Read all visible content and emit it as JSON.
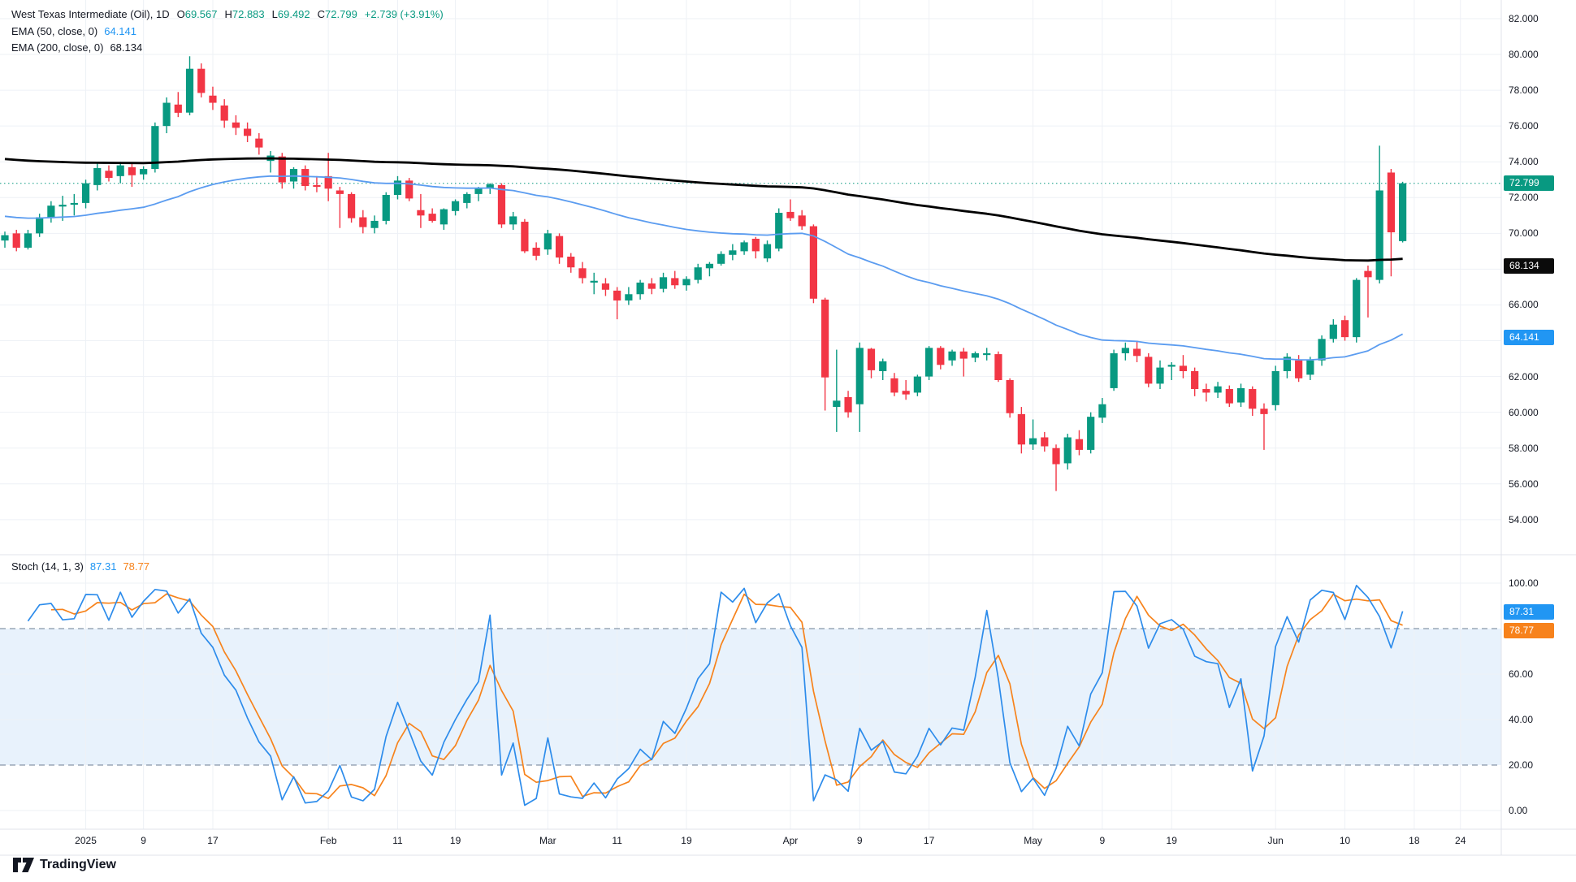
{
  "header": {
    "title": "West Texas Intermediate (Oil), 1D",
    "open_label": "O",
    "open": "69.567",
    "high_label": "H",
    "high": "72.883",
    "low_label": "L",
    "low": "69.492",
    "close_label": "C",
    "close": "72.799",
    "change": "+2.739 (+3.91%)",
    "ema50_label": "EMA (50, close, 0)",
    "ema50_value": "64.141",
    "ema200_label": "EMA (200, close, 0)",
    "ema200_value": "68.134"
  },
  "stoch_header": {
    "label": "Stoch (14, 1, 3)",
    "k_value": "87.31",
    "d_value": "78.77"
  },
  "price_axis": {
    "visible_labels": [
      82,
      80,
      78,
      76,
      74,
      72,
      70,
      66,
      62,
      60,
      58,
      56,
      54
    ],
    "last_price_badge": "72.799",
    "ema200_badge": "68.134",
    "ema50_badge": "64.141"
  },
  "stoch_axis": {
    "visible_labels": [
      100,
      60,
      40,
      20,
      0
    ],
    "k_badge": "87.31",
    "d_badge": "78.77"
  },
  "time_axis": {
    "labels": [
      {
        "label": "2025",
        "i": 7
      },
      {
        "label": "9",
        "i": 12
      },
      {
        "label": "17",
        "i": 18
      },
      {
        "label": "Feb",
        "i": 28
      },
      {
        "label": "11",
        "i": 34
      },
      {
        "label": "19",
        "i": 39
      },
      {
        "label": "Mar",
        "i": 47
      },
      {
        "label": "11",
        "i": 53
      },
      {
        "label": "19",
        "i": 59
      },
      {
        "label": "Apr",
        "i": 68
      },
      {
        "label": "9",
        "i": 74
      },
      {
        "label": "17",
        "i": 80
      },
      {
        "label": "May",
        "i": 89
      },
      {
        "label": "9",
        "i": 95
      },
      {
        "label": "19",
        "i": 101
      },
      {
        "label": "Jun",
        "i": 110
      },
      {
        "label": "10",
        "i": 116
      },
      {
        "label": "18",
        "i": 122
      },
      {
        "label": "24",
        "i": 126
      }
    ]
  },
  "branding": {
    "name": "TradingView"
  },
  "colors": {
    "up": "#089981",
    "down": "#F23645",
    "ema50": "#5B9CF0",
    "ema200": "#000000",
    "stoch_k": "#2D8CEB",
    "stoch_d": "#F7831C",
    "badge_blue": "#2196F3",
    "badge_orange": "#F7821C",
    "grid": "#EEF1F6",
    "band_fill": "#E8F2FC",
    "band_line": "#8796A9",
    "separator": "#E0E3EB",
    "text": "#131722"
  },
  "chart_data": {
    "type": "candlestick",
    "title": "West Texas Intermediate (Oil)",
    "interval": "1D",
    "price_ylim": [
      52.9,
      83.0
    ],
    "stoch_ylim": [
      0,
      100
    ],
    "stoch_overbought": 80,
    "stoch_oversold": 20,
    "last_close": 72.799,
    "indicators": {
      "ema50": {
        "period": 50,
        "seed": 71.0,
        "last": 64.141
      },
      "ema200": {
        "period": 200,
        "seed": 74.2,
        "last": 68.134
      },
      "stoch": {
        "params": [
          14,
          1,
          3
        ],
        "k_last": 87.31,
        "d_last": 78.77
      }
    },
    "candles": [
      [
        "2024-12-20",
        69.6,
        70.1,
        69.2,
        69.9
      ],
      [
        "2024-12-23",
        70.0,
        70.2,
        69.0,
        69.2
      ],
      [
        "2024-12-24",
        69.2,
        70.2,
        69.1,
        70.0
      ],
      [
        "2024-12-26",
        70.0,
        71.1,
        69.8,
        70.9
      ],
      [
        "2024-12-27",
        70.85,
        71.8,
        70.6,
        71.55
      ],
      [
        "2024-12-30",
        71.5,
        72.1,
        70.7,
        71.6
      ],
      [
        "2024-12-31",
        71.6,
        72.2,
        71.0,
        71.7
      ],
      [
        "2025-01-02",
        71.7,
        73.0,
        71.4,
        72.8
      ],
      [
        "2025-01-03",
        72.7,
        73.9,
        72.4,
        73.65
      ],
      [
        "2025-01-06",
        73.5,
        73.8,
        72.9,
        73.1
      ],
      [
        "2025-01-07",
        73.2,
        74.0,
        72.8,
        73.8
      ],
      [
        "2025-01-08",
        73.7,
        73.9,
        72.6,
        73.25
      ],
      [
        "2025-01-09",
        73.3,
        73.75,
        73.0,
        73.6
      ],
      [
        "2025-01-10",
        73.6,
        76.2,
        73.4,
        76.0
      ],
      [
        "2025-01-13",
        76.0,
        77.6,
        75.6,
        77.3
      ],
      [
        "2025-01-14",
        77.2,
        77.9,
        76.5,
        76.74
      ],
      [
        "2025-01-15",
        76.75,
        79.9,
        76.6,
        79.2
      ],
      [
        "2025-01-16",
        79.2,
        79.5,
        77.6,
        77.85
      ],
      [
        "2025-01-17",
        77.7,
        78.2,
        76.9,
        77.3
      ],
      [
        "2025-01-21",
        77.15,
        77.5,
        75.9,
        76.3
      ],
      [
        "2025-01-22",
        76.2,
        76.6,
        75.5,
        75.9
      ],
      [
        "2025-01-23",
        75.85,
        76.2,
        75.1,
        75.45
      ],
      [
        "2025-01-24",
        75.3,
        75.6,
        74.4,
        74.8
      ],
      [
        "2025-01-27",
        74.05,
        74.6,
        73.4,
        74.35
      ],
      [
        "2025-01-28",
        74.3,
        74.5,
        72.5,
        72.85
      ],
      [
        "2025-01-29",
        72.9,
        73.7,
        72.5,
        73.6
      ],
      [
        "2025-01-30",
        73.6,
        73.8,
        72.4,
        72.65
      ],
      [
        "2025-01-31",
        72.7,
        73.2,
        72.3,
        72.6
      ],
      [
        "2025-02-03",
        73.2,
        74.5,
        71.8,
        72.5
      ],
      [
        "2025-02-04",
        72.4,
        72.6,
        70.3,
        72.2
      ],
      [
        "2025-02-05",
        72.2,
        72.3,
        70.6,
        70.85
      ],
      [
        "2025-02-06",
        70.9,
        71.3,
        70.0,
        70.35
      ],
      [
        "2025-02-07",
        70.3,
        71.0,
        70.0,
        70.7
      ],
      [
        "2025-02-10",
        70.7,
        72.3,
        70.5,
        72.15
      ],
      [
        "2025-02-11",
        72.15,
        73.2,
        71.9,
        72.95
      ],
      [
        "2025-02-12",
        72.95,
        73.1,
        71.8,
        71.95
      ],
      [
        "2025-02-13",
        71.3,
        72.2,
        70.3,
        71.0
      ],
      [
        "2025-02-14",
        71.1,
        71.4,
        70.6,
        70.7
      ],
      [
        "2025-02-18",
        70.5,
        71.4,
        70.2,
        71.35
      ],
      [
        "2025-02-19",
        71.25,
        71.9,
        71.0,
        71.8
      ],
      [
        "2025-02-20",
        71.7,
        72.3,
        71.4,
        72.2
      ],
      [
        "2025-02-21",
        72.2,
        72.6,
        71.8,
        72.55
      ],
      [
        "2025-02-24",
        72.5,
        72.8,
        72.2,
        72.75
      ],
      [
        "2025-02-25",
        72.7,
        72.8,
        70.3,
        70.5
      ],
      [
        "2025-02-26",
        70.5,
        71.2,
        70.2,
        70.95
      ],
      [
        "2025-02-27",
        70.65,
        70.8,
        68.9,
        69.0
      ],
      [
        "2025-02-28",
        69.2,
        69.5,
        68.5,
        68.75
      ],
      [
        "2025-03-03",
        69.1,
        70.2,
        68.8,
        70.0
      ],
      [
        "2025-03-04",
        69.85,
        70.0,
        68.3,
        68.65
      ],
      [
        "2025-03-05",
        68.7,
        68.9,
        67.8,
        68.1
      ],
      [
        "2025-03-06",
        68.05,
        68.4,
        67.2,
        67.5
      ],
      [
        "2025-03-07",
        67.25,
        67.8,
        66.6,
        67.35
      ],
      [
        "2025-03-10",
        67.2,
        67.5,
        66.5,
        66.85
      ],
      [
        "2025-03-11",
        66.8,
        67.0,
        65.2,
        66.25
      ],
      [
        "2025-03-12",
        66.25,
        67.0,
        66.0,
        66.6
      ],
      [
        "2025-03-13",
        66.6,
        67.4,
        66.3,
        67.25
      ],
      [
        "2025-03-14",
        67.2,
        67.5,
        66.6,
        66.9
      ],
      [
        "2025-03-17",
        66.9,
        67.8,
        66.7,
        67.55
      ],
      [
        "2025-03-18",
        67.5,
        67.9,
        66.9,
        67.1
      ],
      [
        "2025-03-19",
        67.1,
        67.6,
        66.8,
        67.45
      ],
      [
        "2025-03-20",
        67.4,
        68.3,
        67.2,
        68.1
      ],
      [
        "2025-03-21",
        68.05,
        68.4,
        67.6,
        68.3
      ],
      [
        "2025-03-24",
        68.3,
        69.0,
        68.2,
        68.85
      ],
      [
        "2025-03-25",
        68.8,
        69.4,
        68.5,
        69.05
      ],
      [
        "2025-03-26",
        69.0,
        69.6,
        68.8,
        69.5
      ],
      [
        "2025-03-27",
        69.7,
        69.8,
        68.6,
        69.0
      ],
      [
        "2025-03-28",
        68.6,
        69.6,
        68.4,
        69.4
      ],
      [
        "2025-03-31",
        69.15,
        71.4,
        69.0,
        71.15
      ],
      [
        "2025-04-01",
        71.2,
        71.9,
        70.7,
        70.85
      ],
      [
        "2025-04-02",
        71.0,
        71.3,
        70.2,
        70.4
      ],
      [
        "2025-04-03",
        70.4,
        70.5,
        66.1,
        66.35
      ],
      [
        "2025-04-04",
        66.3,
        66.4,
        60.1,
        61.95
      ],
      [
        "2025-04-07",
        60.3,
        63.5,
        58.9,
        60.65
      ],
      [
        "2025-04-08",
        60.85,
        61.2,
        59.7,
        60.0
      ],
      [
        "2025-04-09",
        60.45,
        63.9,
        58.9,
        63.6
      ],
      [
        "2025-04-10",
        63.55,
        63.6,
        61.9,
        62.35
      ],
      [
        "2025-04-11",
        62.3,
        63.0,
        61.8,
        62.85
      ],
      [
        "2025-04-14",
        61.9,
        62.2,
        60.9,
        61.1
      ],
      [
        "2025-04-15",
        61.2,
        61.8,
        60.7,
        61.0
      ],
      [
        "2025-04-16",
        61.1,
        62.1,
        60.9,
        62.0
      ],
      [
        "2025-04-17",
        62.0,
        63.7,
        61.8,
        63.6
      ],
      [
        "2025-04-21",
        63.6,
        63.7,
        62.4,
        62.65
      ],
      [
        "2025-04-22",
        62.9,
        63.5,
        62.6,
        63.4
      ],
      [
        "2025-04-23",
        63.4,
        63.6,
        62.0,
        63.0
      ],
      [
        "2025-04-24",
        63.05,
        63.4,
        62.8,
        63.3
      ],
      [
        "2025-04-25",
        63.2,
        63.6,
        62.9,
        63.3
      ],
      [
        "2025-04-28",
        63.25,
        63.4,
        61.7,
        61.8
      ],
      [
        "2025-04-29",
        61.8,
        61.9,
        59.7,
        59.95
      ],
      [
        "2025-04-30",
        59.9,
        60.3,
        57.7,
        58.2
      ],
      [
        "2025-05-01",
        58.2,
        59.6,
        57.9,
        58.55
      ],
      [
        "2025-05-02",
        58.6,
        58.9,
        57.8,
        58.1
      ],
      [
        "2025-05-05",
        58.0,
        58.2,
        55.6,
        57.1
      ],
      [
        "2025-05-06",
        57.15,
        58.8,
        56.8,
        58.6
      ],
      [
        "2025-05-07",
        58.5,
        59.0,
        57.6,
        57.9
      ],
      [
        "2025-05-08",
        57.9,
        60.0,
        57.7,
        59.75
      ],
      [
        "2025-05-09",
        59.7,
        60.8,
        59.4,
        60.45
      ],
      [
        "2025-05-12",
        61.35,
        63.5,
        61.2,
        63.3
      ],
      [
        "2025-05-13",
        63.3,
        63.9,
        62.9,
        63.6
      ],
      [
        "2025-05-14",
        63.55,
        64.0,
        62.8,
        63.15
      ],
      [
        "2025-05-15",
        63.1,
        63.3,
        61.4,
        61.6
      ],
      [
        "2025-05-16",
        61.6,
        62.9,
        61.3,
        62.5
      ],
      [
        "2025-05-19",
        62.55,
        62.8,
        61.8,
        62.65
      ],
      [
        "2025-05-20",
        62.6,
        63.2,
        61.9,
        62.3
      ],
      [
        "2025-05-21",
        62.3,
        62.5,
        60.9,
        61.3
      ],
      [
        "2025-05-22",
        61.3,
        61.6,
        60.6,
        61.1
      ],
      [
        "2025-05-23",
        61.1,
        61.7,
        60.8,
        61.45
      ],
      [
        "2025-05-27",
        61.3,
        61.5,
        60.3,
        60.5
      ],
      [
        "2025-05-28",
        60.55,
        61.6,
        60.3,
        61.35
      ],
      [
        "2025-05-29",
        61.3,
        61.45,
        59.8,
        60.2
      ],
      [
        "2025-05-30",
        60.2,
        60.5,
        57.9,
        59.9
      ],
      [
        "2025-06-02",
        60.4,
        62.6,
        60.1,
        62.3
      ],
      [
        "2025-06-03",
        62.3,
        63.3,
        61.9,
        63.1
      ],
      [
        "2025-06-04",
        62.9,
        63.2,
        61.7,
        61.9
      ],
      [
        "2025-06-05",
        62.1,
        63.1,
        61.8,
        62.9
      ],
      [
        "2025-06-06",
        62.9,
        64.3,
        62.6,
        64.1
      ],
      [
        "2025-06-09",
        64.1,
        65.2,
        63.9,
        64.9
      ],
      [
        "2025-06-10",
        65.15,
        65.4,
        64.0,
        64.2
      ],
      [
        "2025-06-11",
        64.2,
        67.5,
        63.9,
        67.4
      ],
      [
        "2025-06-12",
        67.9,
        68.2,
        65.3,
        67.55
      ],
      [
        "2025-06-13",
        67.4,
        74.9,
        67.2,
        72.4
      ],
      [
        "2025-06-16",
        73.4,
        73.6,
        67.6,
        70.06
      ],
      [
        "2025-06-17",
        69.567,
        72.883,
        69.492,
        72.799
      ]
    ]
  }
}
